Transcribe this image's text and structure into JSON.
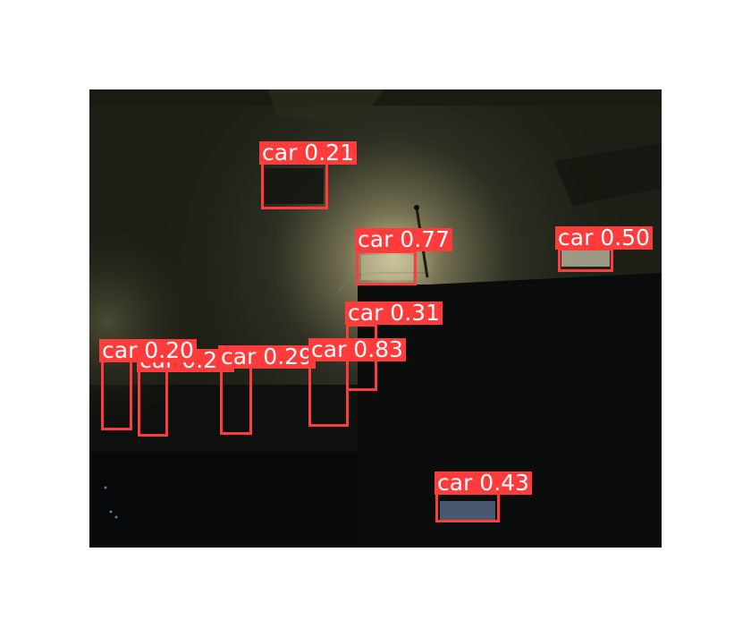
{
  "detections": [
    {
      "label": "car",
      "score": "0.21"
    },
    {
      "label": "car",
      "score": "0.77"
    },
    {
      "label": "car",
      "score": "0.50"
    },
    {
      "label": "car",
      "score": "0.31"
    },
    {
      "label": "car",
      "score": "0.20"
    },
    {
      "label": "car",
      "score": "0.20"
    },
    {
      "label": "car",
      "score": "0.29"
    },
    {
      "label": "car",
      "score": "0.83"
    },
    {
      "label": "car",
      "score": "0.43"
    }
  ],
  "colors": {
    "box": "#ff3b3b",
    "label_text": "#ffffff"
  }
}
